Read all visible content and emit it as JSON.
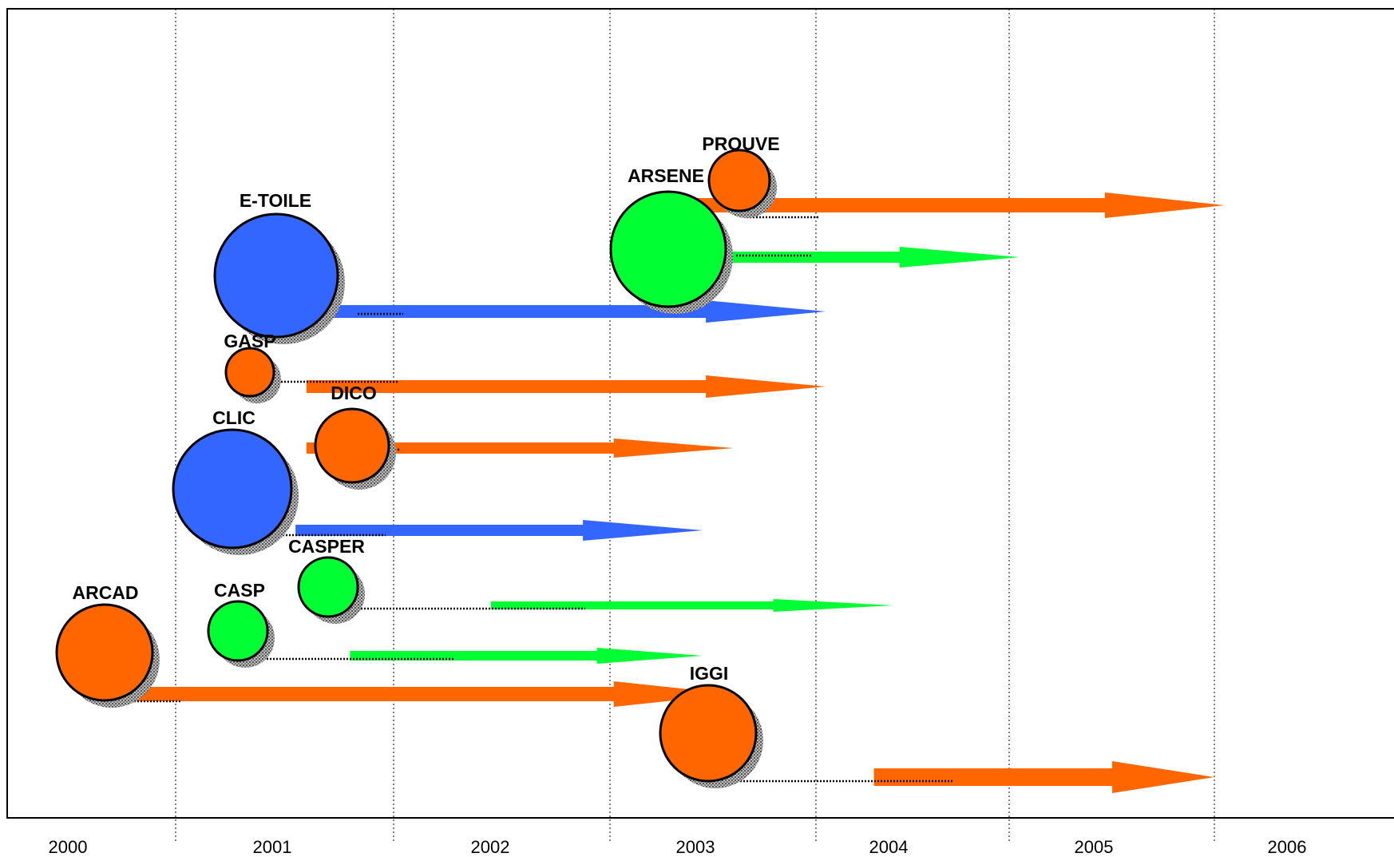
{
  "chart_data": {
    "type": "timeline-bubble",
    "x_axis": {
      "ticks": [
        "2000",
        "2001",
        "2002",
        "2003",
        "2004",
        "2005",
        "2006"
      ]
    },
    "colors": {
      "orange": "#ff6600",
      "green": "#00ff33",
      "blue": "#3366ff",
      "shadow": "#888888",
      "outline": "#000000"
    },
    "projects": [
      {
        "name": "PROUVE",
        "color": "orange",
        "start_year": 2003.15,
        "end_year": 2006.05
      },
      {
        "name": "ARSENE",
        "color": "green",
        "start_year": 2003.0,
        "end_year": 2005.05
      },
      {
        "name": "E-TOILE",
        "color": "blue",
        "start_year": 2001.6,
        "end_year": 2004.05
      },
      {
        "name": "GASP",
        "color": "orange",
        "start_year": 2001.6,
        "end_year": 2004.05
      },
      {
        "name": "DICO",
        "color": "orange",
        "start_year": 2001.6,
        "end_year": 2003.6
      },
      {
        "name": "CLIC",
        "color": "blue",
        "start_year": 2001.55,
        "end_year": 2003.45
      },
      {
        "name": "CASPER",
        "color": "green",
        "start_year": 2002.45,
        "end_year": 2004.4
      },
      {
        "name": "CASP",
        "color": "green",
        "start_year": 2001.8,
        "end_year": 2003.45
      },
      {
        "name": "ARCAD",
        "color": "orange",
        "start_year": 2000.5,
        "end_year": 2003.6
      },
      {
        "name": "IGGI",
        "color": "orange",
        "start_year": 2004.3,
        "end_year": 2006.0
      }
    ]
  }
}
